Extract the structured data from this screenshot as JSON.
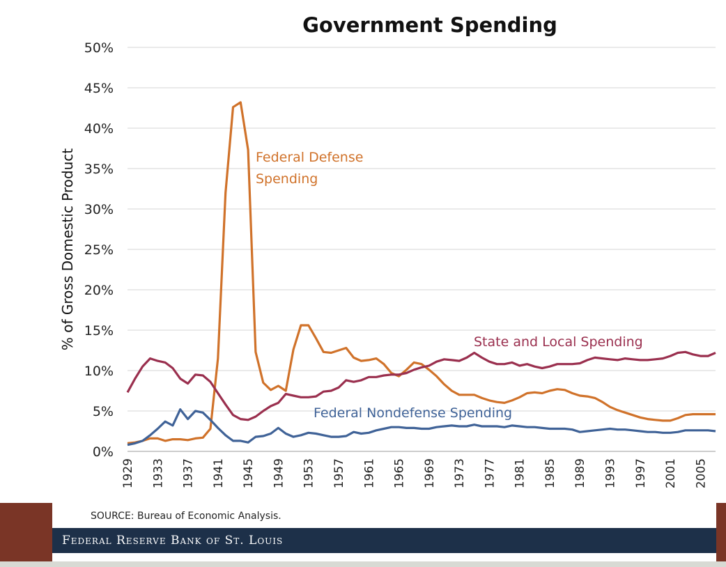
{
  "chart_data": {
    "type": "line",
    "title": "Government Spending",
    "ylabel": "% of Gross Domestic Product",
    "xlabel": "",
    "ylim": [
      0,
      50
    ],
    "yticks": [
      "0%",
      "5%",
      "10%",
      "15%",
      "20%",
      "25%",
      "30%",
      "35%",
      "40%",
      "45%",
      "50%"
    ],
    "xlim": [
      1929,
      2007
    ],
    "xticks": [
      "1929",
      "1933",
      "1937",
      "1941",
      "1945",
      "1949",
      "1953",
      "1957",
      "1961",
      "1965",
      "1969",
      "1973",
      "1977",
      "1981",
      "1985",
      "1989",
      "1993",
      "1997",
      "2001",
      "2005"
    ],
    "grid": "horizontal",
    "series": [
      {
        "name": "Federal Defense Spending",
        "color": "#d0722a",
        "x": [
          1929,
          1930,
          1931,
          1932,
          1933,
          1934,
          1935,
          1936,
          1937,
          1938,
          1939,
          1940,
          1941,
          1942,
          1943,
          1944,
          1945,
          1946,
          1947,
          1948,
          1949,
          1950,
          1951,
          1952,
          1953,
          1954,
          1955,
          1956,
          1957,
          1958,
          1959,
          1960,
          1961,
          1962,
          1963,
          1964,
          1965,
          1966,
          1967,
          1968,
          1969,
          1970,
          1971,
          1972,
          1973,
          1974,
          1975,
          1976,
          1977,
          1978,
          1979,
          1980,
          1981,
          1982,
          1983,
          1984,
          1985,
          1986,
          1987,
          1988,
          1989,
          1990,
          1991,
          1992,
          1993,
          1994,
          1995,
          1996,
          1997,
          1998,
          1999,
          2000,
          2001,
          2002,
          2003,
          2004,
          2005,
          2006,
          2007
        ],
        "values": [
          1.0,
          1.1,
          1.3,
          1.6,
          1.6,
          1.3,
          1.5,
          1.5,
          1.4,
          1.6,
          1.7,
          2.8,
          11.5,
          32,
          42.6,
          43.2,
          37.3,
          12.3,
          8.5,
          7.6,
          8.1,
          7.5,
          12.6,
          15.6,
          15.6,
          14.0,
          12.3,
          12.2,
          12.5,
          12.8,
          11.6,
          11.2,
          11.3,
          11.5,
          10.8,
          9.7,
          9.3,
          10.1,
          11.0,
          10.8,
          10.1,
          9.3,
          8.3,
          7.5,
          7.0,
          7.0,
          7.0,
          6.6,
          6.3,
          6.1,
          6.0,
          6.3,
          6.7,
          7.2,
          7.3,
          7.2,
          7.5,
          7.7,
          7.6,
          7.2,
          6.9,
          6.8,
          6.6,
          6.1,
          5.5,
          5.1,
          4.8,
          4.5,
          4.2,
          4.0,
          3.9,
          3.8,
          3.8,
          4.1,
          4.5,
          4.6,
          4.6,
          4.6,
          4.6
        ]
      },
      {
        "name": "State and Local Spending",
        "color": "#9a2f4e",
        "x": [
          1929,
          1930,
          1931,
          1932,
          1933,
          1934,
          1935,
          1936,
          1937,
          1938,
          1939,
          1940,
          1941,
          1942,
          1943,
          1944,
          1945,
          1946,
          1947,
          1948,
          1949,
          1950,
          1951,
          1952,
          1953,
          1954,
          1955,
          1956,
          1957,
          1958,
          1959,
          1960,
          1961,
          1962,
          1963,
          1964,
          1965,
          1966,
          1967,
          1968,
          1969,
          1970,
          1971,
          1972,
          1973,
          1974,
          1975,
          1976,
          1977,
          1978,
          1979,
          1980,
          1981,
          1982,
          1983,
          1984,
          1985,
          1986,
          1987,
          1988,
          1989,
          1990,
          1991,
          1992,
          1993,
          1994,
          1995,
          1996,
          1997,
          1998,
          1999,
          2000,
          2001,
          2002,
          2003,
          2004,
          2005,
          2006,
          2007
        ],
        "values": [
          7.3,
          9.0,
          10.5,
          11.5,
          11.2,
          11.0,
          10.3,
          9.0,
          8.4,
          9.5,
          9.4,
          8.6,
          7.2,
          5.8,
          4.5,
          4.0,
          3.9,
          4.3,
          5.0,
          5.6,
          6.0,
          7.1,
          6.9,
          6.7,
          6.7,
          6.8,
          7.4,
          7.5,
          7.9,
          8.8,
          8.6,
          8.8,
          9.2,
          9.2,
          9.4,
          9.5,
          9.5,
          9.7,
          10.1,
          10.4,
          10.6,
          11.1,
          11.4,
          11.3,
          11.2,
          11.6,
          12.2,
          11.6,
          11.1,
          10.8,
          10.8,
          11.0,
          10.6,
          10.8,
          10.5,
          10.3,
          10.5,
          10.8,
          10.8,
          10.8,
          10.9,
          11.3,
          11.6,
          11.5,
          11.4,
          11.3,
          11.5,
          11.4,
          11.3,
          11.3,
          11.4,
          11.5,
          11.8,
          12.2,
          12.3,
          12.0,
          11.8,
          11.8,
          12.2
        ]
      },
      {
        "name": "Federal Nondefense Spending",
        "color": "#3f6297",
        "x": [
          1929,
          1930,
          1931,
          1932,
          1933,
          1934,
          1935,
          1936,
          1937,
          1938,
          1939,
          1940,
          1941,
          1942,
          1943,
          1944,
          1945,
          1946,
          1947,
          1948,
          1949,
          1950,
          1951,
          1952,
          1953,
          1954,
          1955,
          1956,
          1957,
          1958,
          1959,
          1960,
          1961,
          1962,
          1963,
          1964,
          1965,
          1966,
          1967,
          1968,
          1969,
          1970,
          1971,
          1972,
          1973,
          1974,
          1975,
          1976,
          1977,
          1978,
          1979,
          1980,
          1981,
          1982,
          1983,
          1984,
          1985,
          1986,
          1987,
          1988,
          1989,
          1990,
          1991,
          1992,
          1993,
          1994,
          1995,
          1996,
          1997,
          1998,
          1999,
          2000,
          2001,
          2002,
          2003,
          2004,
          2005,
          2006,
          2007
        ],
        "values": [
          0.8,
          1.0,
          1.3,
          2.0,
          2.8,
          3.7,
          3.2,
          5.2,
          4.0,
          5.0,
          4.8,
          3.9,
          2.9,
          2.0,
          1.3,
          1.3,
          1.1,
          1.8,
          1.9,
          2.2,
          2.9,
          2.2,
          1.8,
          2.0,
          2.3,
          2.2,
          2.0,
          1.8,
          1.8,
          1.9,
          2.4,
          2.2,
          2.3,
          2.6,
          2.8,
          3.0,
          3.0,
          2.9,
          2.9,
          2.8,
          2.8,
          3.0,
          3.1,
          3.2,
          3.1,
          3.1,
          3.3,
          3.1,
          3.1,
          3.1,
          3.0,
          3.2,
          3.1,
          3.0,
          3.0,
          2.9,
          2.8,
          2.8,
          2.8,
          2.7,
          2.4,
          2.5,
          2.6,
          2.7,
          2.8,
          2.7,
          2.7,
          2.6,
          2.5,
          2.4,
          2.4,
          2.3,
          2.3,
          2.4,
          2.6,
          2.6,
          2.6,
          2.6,
          2.5
        ]
      }
    ],
    "annotations": [
      {
        "lines": [
          "Federal Defense",
          "Spending"
        ],
        "series": 0
      },
      {
        "lines": [
          "State and Local Spending"
        ],
        "series": 1
      },
      {
        "lines": [
          "Federal Nondefense Spending"
        ],
        "series": 2
      }
    ]
  },
  "footer": {
    "source": "SOURCE: Bureau of Economic Analysis.",
    "bank": "Federal Reserve Bank of St. Louis"
  }
}
